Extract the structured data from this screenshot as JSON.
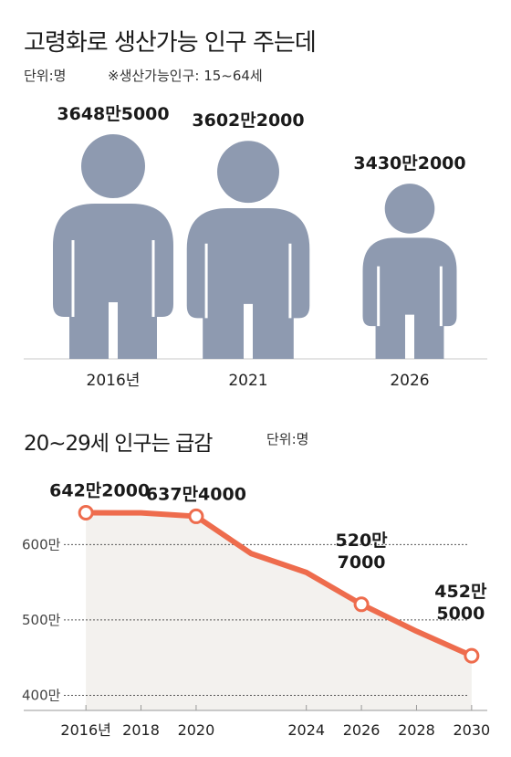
{
  "header": {
    "title": "고령화로 생산가능 인구 주는데",
    "unit": "단위:명",
    "note": "※생산가능인구: 15~64세"
  },
  "line_section": {
    "title": "20~29세 인구는 급감",
    "unit": "단위:명"
  },
  "colors": {
    "figure": "#8e9ab0",
    "line": "#ee6c4d",
    "panel": "#f3f1ee"
  },
  "chart_data": [
    {
      "type": "bar",
      "title": "고령화로 생산가능 인구 주는데",
      "categories": [
        "2016년",
        "2021",
        "2026"
      ],
      "values": [
        36485000,
        36022000,
        34302000
      ],
      "value_labels": [
        "3648만5000",
        "3602만2000",
        "3430만2000"
      ]
    },
    {
      "type": "line",
      "title": "20~29세 인구는 급감",
      "x": [
        2016,
        2018,
        2020,
        2022,
        2024,
        2026,
        2028,
        2030
      ],
      "x_tick_labels": [
        "2016년",
        "2018",
        "2020",
        "2024",
        "2026",
        "2028",
        "2030"
      ],
      "x_ticks": [
        2016,
        2018,
        2020,
        2024,
        2026,
        2028,
        2030
      ],
      "y": [
        6422000,
        6420000,
        6374000,
        5880000,
        5630000,
        5207000,
        4850000,
        4525000
      ],
      "marked_points": [
        {
          "x": 2016,
          "y": 6422000,
          "label_lines": [
            "642만2000"
          ]
        },
        {
          "x": 2020,
          "y": 6374000,
          "label_lines": [
            "637만4000"
          ]
        },
        {
          "x": 2026,
          "y": 5207000,
          "label_lines": [
            "520만",
            "7000"
          ]
        },
        {
          "x": 2030,
          "y": 4525000,
          "label_lines": [
            "452만",
            "5000"
          ]
        }
      ],
      "y_ticks": [
        4000000,
        5000000,
        6000000
      ],
      "y_tick_labels": [
        "400만",
        "500만",
        "600만"
      ],
      "ylim": [
        3800000,
        6900000
      ],
      "grid": true
    }
  ]
}
